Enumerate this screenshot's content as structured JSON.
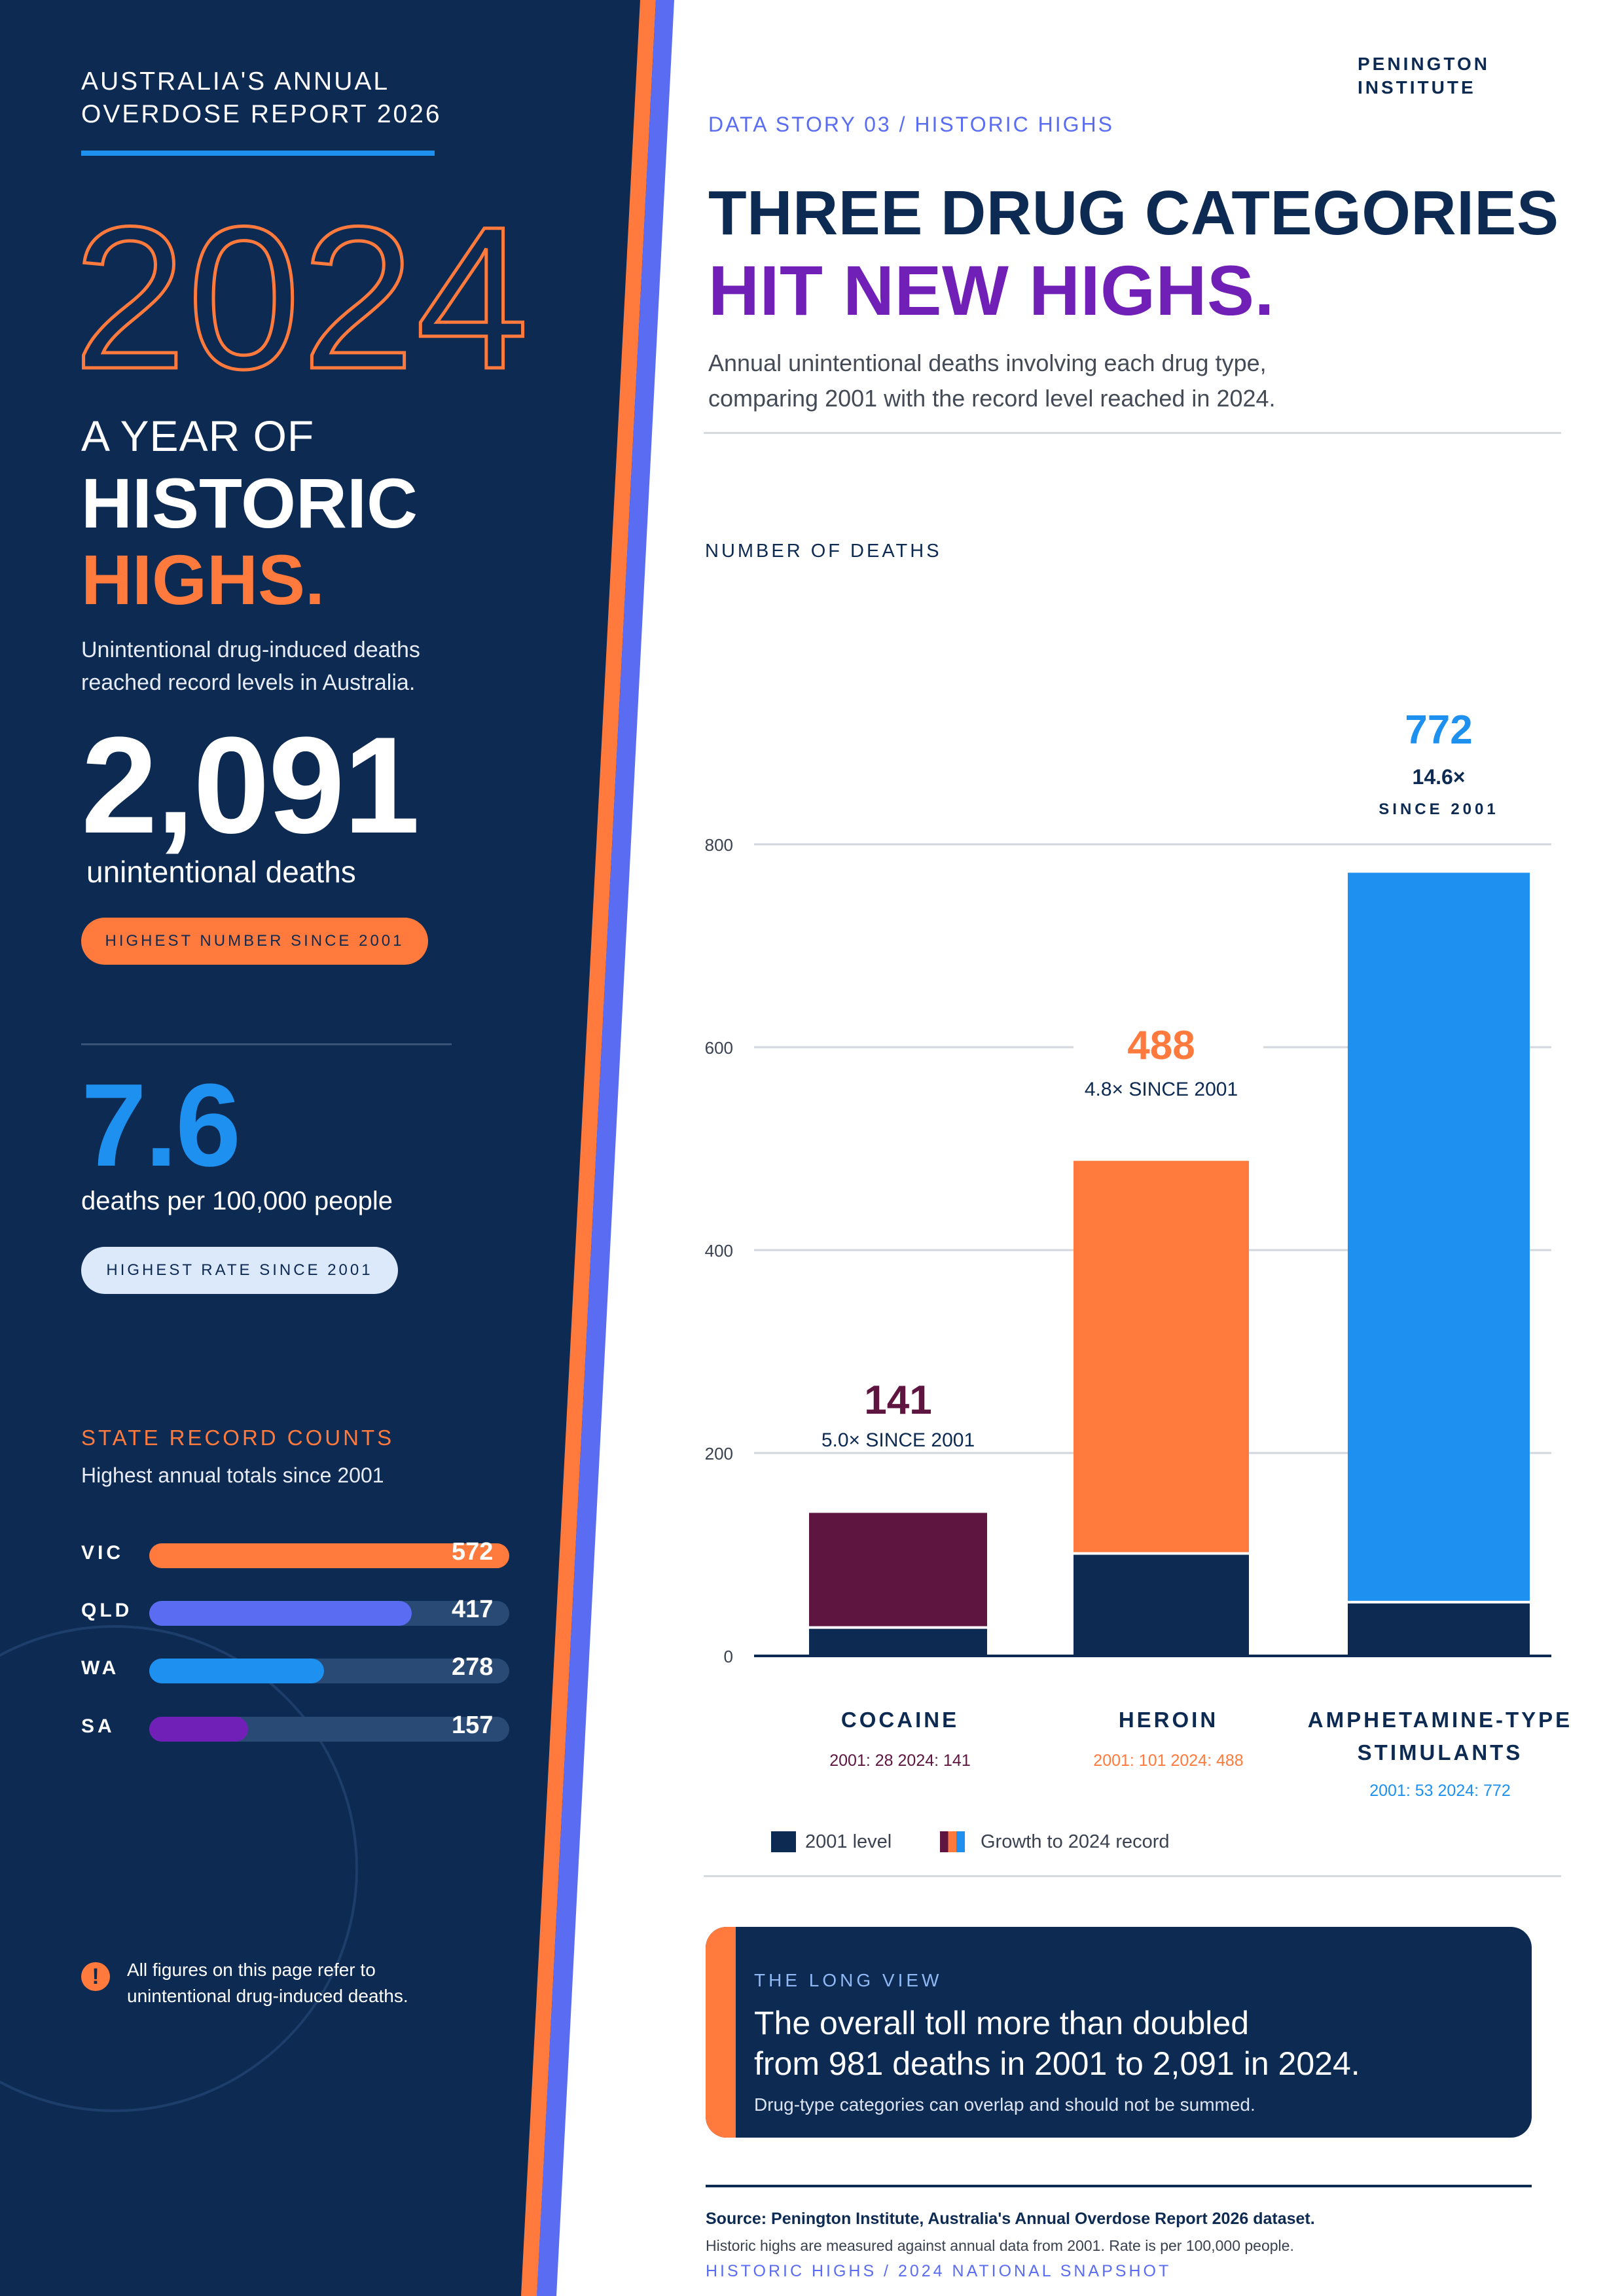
{
  "left": {
    "kicker_line1": "AUSTRALIA'S ANNUAL",
    "kicker_line2": "OVERDOSE REPORT 2026",
    "year": "2024",
    "a_year_of": "A YEAR OF",
    "historic": "HISTORIC",
    "highs": "HIGHS.",
    "lead_line1": "Unintentional drug-induced deaths",
    "lead_line2": "reached record levels in Australia.",
    "deaths_total": "2,091",
    "deaths_unit": "unintentional deaths",
    "deaths_pill": "HIGHEST NUMBER SINCE 2001",
    "rate": "7.6",
    "rate_unit": "deaths per 100,000 people",
    "rate_pill": "HIGHEST RATE SINCE 2001",
    "states_title": "STATE RECORD COUNTS",
    "states_sub": "Highest annual totals since 2001",
    "states": [
      {
        "abbr": "VIC",
        "value": "572",
        "fraction": 1.0,
        "color": "#ff7a3c"
      },
      {
        "abbr": "QLD",
        "value": "417",
        "fraction": 0.729,
        "color": "#5a6cf2"
      },
      {
        "abbr": "WA",
        "value": "278",
        "fraction": 0.486,
        "color": "#1e90ef"
      },
      {
        "abbr": "SA",
        "value": "157",
        "fraction": 0.274,
        "color": "#7020b6"
      }
    ],
    "note_line1": "All figures on this page refer to",
    "note_line2": "unintentional drug-induced deaths."
  },
  "right": {
    "org_line1": "PENINGTON",
    "org_line2": "INSTITUTE",
    "kicker": "DATA STORY 03 / HISTORIC HIGHS",
    "headline_line1": "THREE DRUG CATEGORIES",
    "headline_line2": "HIT NEW HIGHS.",
    "dek_line1": "Annual unintentional deaths involving each drug type,",
    "dek_line2": "comparing 2001 with the record level reached in 2024.",
    "long_view_kicker": "THE LONG VIEW",
    "long_view_line1": "The overall toll more than doubled",
    "long_view_line2": "from 981 deaths in 2001 to 2,091 in 2024.",
    "long_view_foot": "Drug-type categories can overlap and should not be summed.",
    "source_line1": "Source: Penington Institute, Australia's Annual Overdose Report 2026 dataset.",
    "source_line2": "Historic highs are measured against annual data from 2001. Rate is per 100,000 people.",
    "source_line3": "HISTORIC HIGHS / 2024 NATIONAL SNAPSHOT"
  },
  "colors": {
    "navy": "#0d2a52",
    "orange": "#ff7a3c",
    "blue": "#1e90ef",
    "indigo": "#5a6cf2",
    "purple": "#7020b6",
    "maroon": "#5e1540"
  },
  "chart_data": {
    "type": "bar",
    "ytitle": "NUMBER OF DEATHS",
    "ylim": [
      0,
      800
    ],
    "yticks": [
      "0",
      "200",
      "400",
      "600",
      "800"
    ],
    "grid": true,
    "legend_placement": "bottom",
    "categories": [
      "COCAINE",
      "HEROIN",
      "AMPHETAMINE-TYPE STIMULANTS"
    ],
    "category_lines": [
      [
        "COCAINE"
      ],
      [
        "HEROIN"
      ],
      [
        "AMPHETAMINE-TYPE",
        "STIMULANTS"
      ]
    ],
    "series": [
      {
        "name": "2001 level",
        "values": [
          28,
          101,
          53
        ]
      },
      {
        "name": "Growth to 2024 record",
        "values": [
          113,
          387,
          719
        ]
      }
    ],
    "totals_2024": [
      141,
      488,
      772
    ],
    "value_labels": [
      "141",
      "488",
      "772"
    ],
    "growth_labels": [
      "5.0× SINCE 2001",
      "4.8× SINCE 2001",
      "14.6×"
    ],
    "growth_sub": [
      "",
      "",
      "SINCE 2001"
    ],
    "notes": [
      "2001: 28 2024: 141",
      "2001: 101 2024: 488",
      "2001: 53 2024: 772"
    ],
    "bar_colors": [
      "#5e1540",
      "#ff7a3c",
      "#1e90ef"
    ]
  }
}
